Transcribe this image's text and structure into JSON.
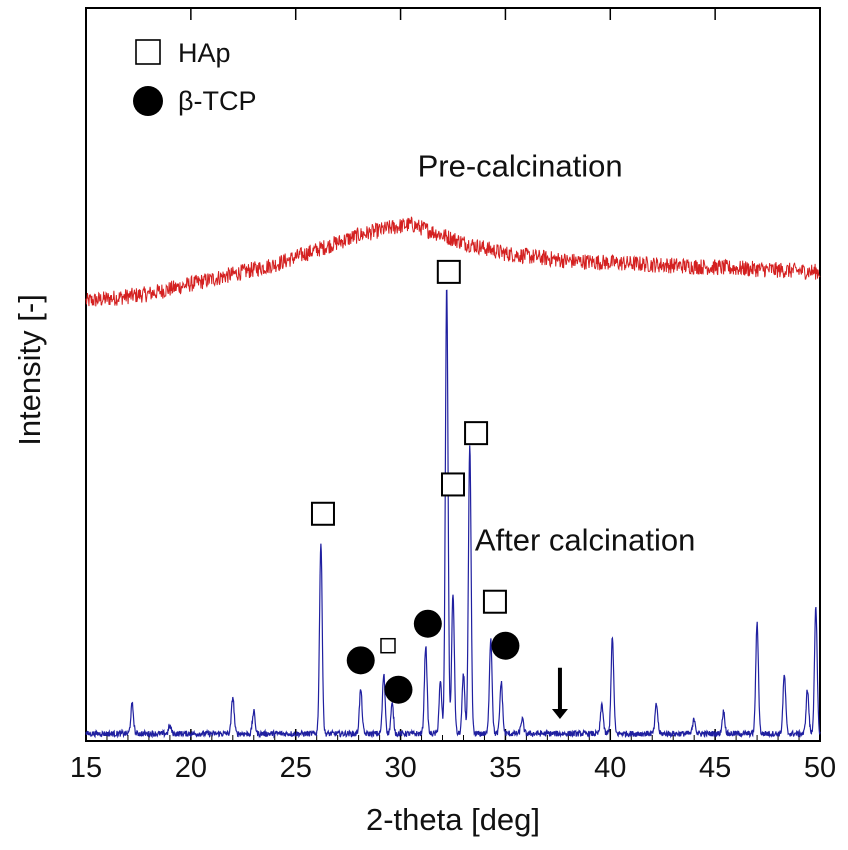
{
  "chart_data": {
    "type": "line",
    "xlabel": "2-theta [deg]",
    "ylabel": "Intensity [-]",
    "xlim": [
      15,
      50
    ],
    "x_ticks": [
      "15",
      "20",
      "25",
      "30",
      "35",
      "40",
      "45",
      "50"
    ],
    "y_ticks": "none",
    "grid": false,
    "legend": {
      "placement": "top-left",
      "entries": [
        {
          "label": "HAp",
          "marker": "open-square"
        },
        {
          "label": "β-TCP",
          "marker": "filled-circle"
        }
      ]
    },
    "series": [
      {
        "name": "Pre-calcination",
        "color": "#d42020",
        "shape": "broad amorphous hump",
        "x": [
          15,
          18,
          21,
          24,
          26,
          28,
          29.5,
          30.5,
          31.5,
          33,
          35,
          38,
          42,
          46,
          50
        ],
        "y": [
          0.6,
          0.61,
          0.63,
          0.65,
          0.67,
          0.69,
          0.7,
          0.705,
          0.695,
          0.68,
          0.665,
          0.655,
          0.65,
          0.645,
          0.64
        ]
      },
      {
        "name": "After calcination",
        "color": "#2020a0",
        "baseline": 0.01,
        "peaks": [
          {
            "x": 17.2,
            "y": 0.05
          },
          {
            "x": 19.0,
            "y": 0.02
          },
          {
            "x": 22.0,
            "y": 0.06
          },
          {
            "x": 23.0,
            "y": 0.04
          },
          {
            "x": 26.2,
            "y": 0.27
          },
          {
            "x": 28.1,
            "y": 0.07
          },
          {
            "x": 29.2,
            "y": 0.09
          },
          {
            "x": 29.6,
            "y": 0.05
          },
          {
            "x": 31.2,
            "y": 0.13
          },
          {
            "x": 31.9,
            "y": 0.08
          },
          {
            "x": 32.2,
            "y": 0.62
          },
          {
            "x": 32.5,
            "y": 0.2
          },
          {
            "x": 33.0,
            "y": 0.09
          },
          {
            "x": 33.3,
            "y": 0.4
          },
          {
            "x": 34.3,
            "y": 0.14
          },
          {
            "x": 34.8,
            "y": 0.08
          },
          {
            "x": 35.8,
            "y": 0.03
          },
          {
            "x": 39.6,
            "y": 0.05
          },
          {
            "x": 40.1,
            "y": 0.14
          },
          {
            "x": 42.2,
            "y": 0.05
          },
          {
            "x": 44.0,
            "y": 0.03
          },
          {
            "x": 45.4,
            "y": 0.04
          },
          {
            "x": 47.0,
            "y": 0.16
          },
          {
            "x": 48.3,
            "y": 0.09
          },
          {
            "x": 49.4,
            "y": 0.07
          },
          {
            "x": 49.8,
            "y": 0.18
          }
        ]
      }
    ],
    "annotations": {
      "hap_markers": [
        {
          "x": 26.3,
          "y": 0.31
        },
        {
          "x": 32.3,
          "y": 0.64
        },
        {
          "x": 32.5,
          "y": 0.35
        },
        {
          "x": 33.6,
          "y": 0.42
        },
        {
          "x": 34.5,
          "y": 0.19
        }
      ],
      "hap_small_markers": [
        {
          "x": 29.4,
          "y": 0.13
        }
      ],
      "tcp_markers": [
        {
          "x": 28.1,
          "y": 0.11
        },
        {
          "x": 29.9,
          "y": 0.07
        },
        {
          "x": 31.3,
          "y": 0.16
        },
        {
          "x": 35.0,
          "y": 0.13
        }
      ],
      "arrow": {
        "x": 37.6,
        "y_top": 0.1,
        "y_bottom": 0.03
      },
      "series_labels": [
        {
          "text": "Pre-calcination",
          "x": 35.7,
          "y": 0.77
        },
        {
          "text": "After calcination",
          "x": 38.8,
          "y": 0.26
        }
      ]
    }
  }
}
